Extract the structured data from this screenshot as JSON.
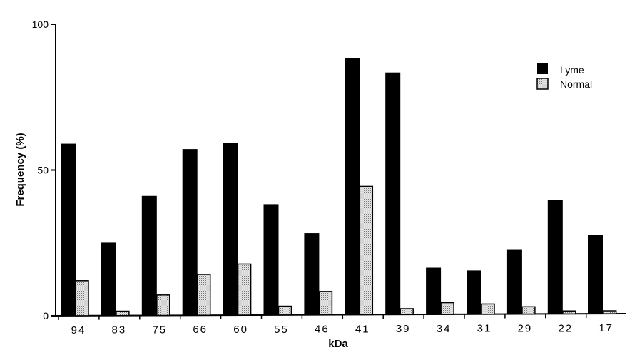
{
  "chart_data": {
    "type": "bar",
    "title": "",
    "xlabel": "kDa",
    "ylabel": "Frequency (%)",
    "ylim": [
      0,
      100
    ],
    "yticks": [
      0,
      50,
      100
    ],
    "grid": false,
    "legend_position": "top-right",
    "categories": [
      "94",
      "83",
      "75",
      "66",
      "60",
      "55",
      "46",
      "41",
      "39",
      "34",
      "31",
      "29",
      "22",
      "17"
    ],
    "series": [
      {
        "name": "Lyme",
        "color": "#000000",
        "pattern": "solid",
        "values": [
          59,
          25,
          41,
          57,
          59,
          38,
          28,
          88,
          83,
          16,
          15,
          22,
          39,
          27
        ]
      },
      {
        "name": "Normal",
        "color": "#cfcfcf",
        "pattern": "stippled",
        "values": [
          12,
          1.5,
          7,
          14,
          17.5,
          3,
          8,
          44,
          2,
          4,
          3.5,
          2.5,
          1,
          1
        ]
      }
    ]
  }
}
